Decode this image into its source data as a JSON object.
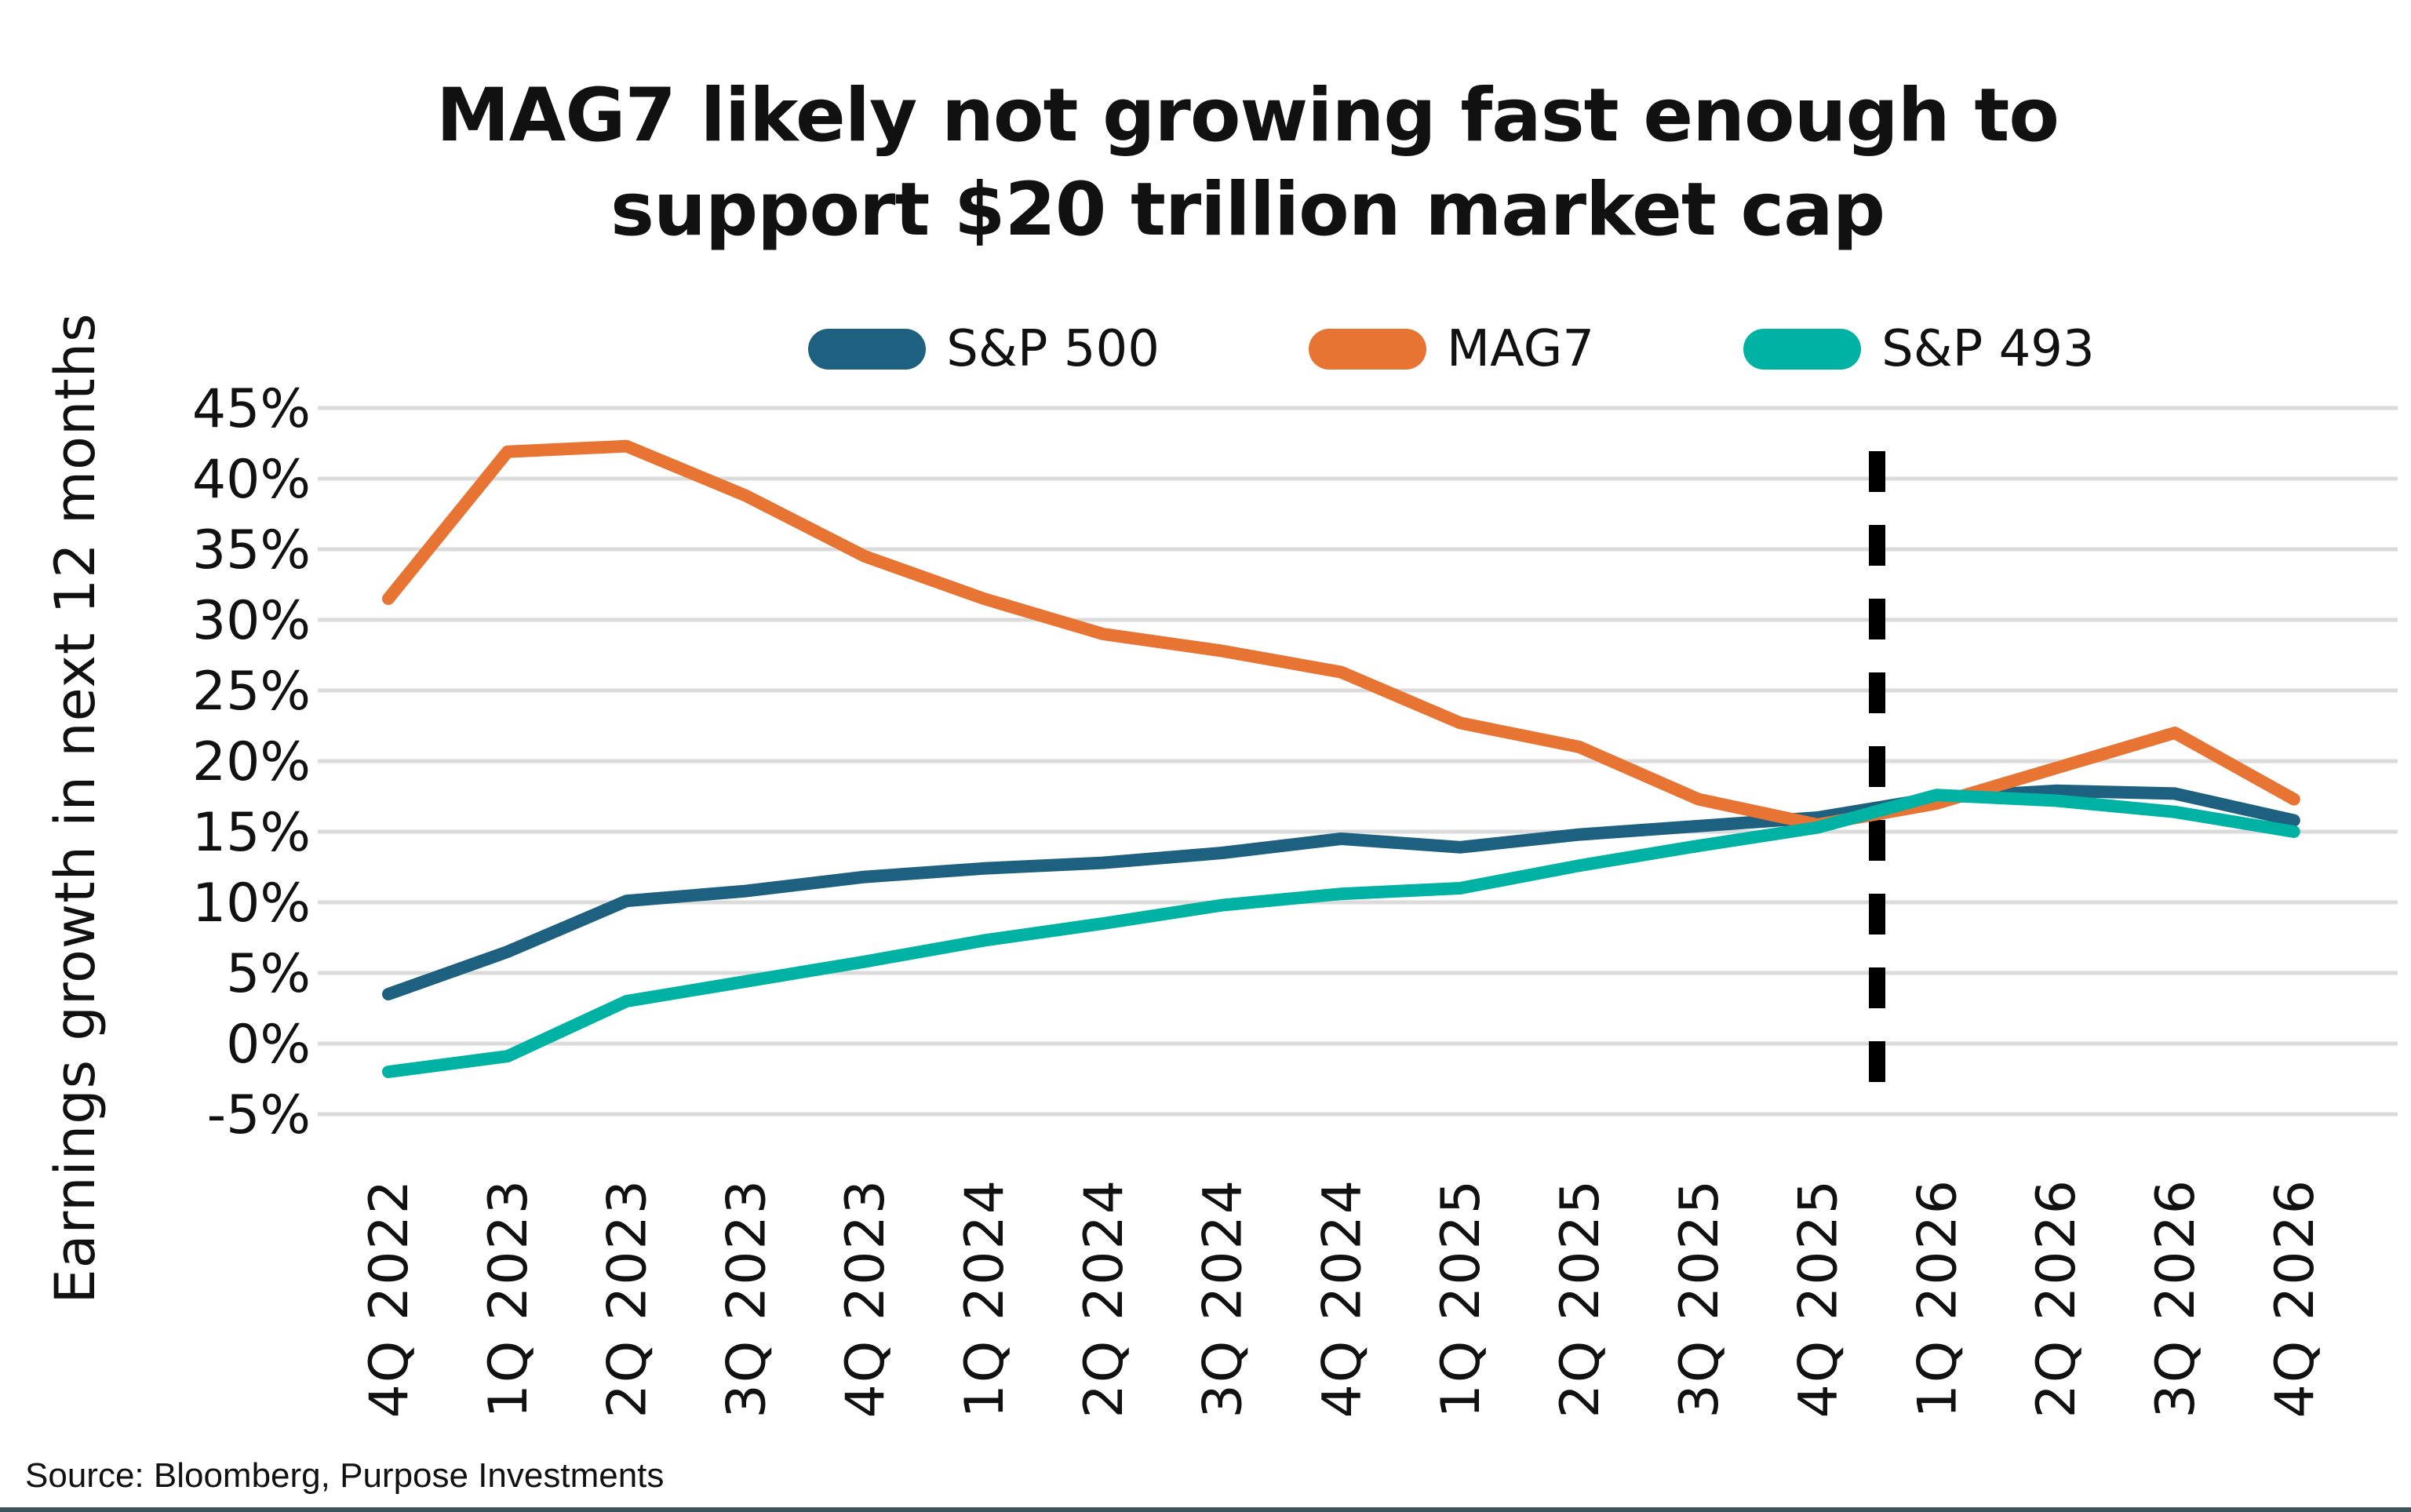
{
  "title": {
    "line1": "MAG7 likely not growing fast enough to",
    "line2": "support $20 trillion market cap"
  },
  "y_axis_title": "Earnings growth in next 12 months",
  "source": "Source: Bloomberg, Purpose Investments",
  "colors": {
    "sp500": "#1d607f",
    "mag7": "#e87434",
    "sp493": "#00b2a4",
    "gridline": "#dbdbdb",
    "divider": "#000000",
    "bottom_border": "#3a545c"
  },
  "chart_data": {
    "type": "line",
    "title": "MAG7 likely not growing fast enough to support $20 trillion market cap",
    "ylabel": "Earnings growth in next 12 months",
    "xlabel": "",
    "ylim": [
      -5,
      45
    ],
    "ytick_step": 5,
    "ytick_labels": [
      "45%",
      "40%",
      "35%",
      "30%",
      "25%",
      "20%",
      "15%",
      "10%",
      "5%",
      "0%",
      "-5%"
    ],
    "grid": "horizontal",
    "legend_position": "top",
    "categories": [
      "4Q 2022",
      "1Q 2023",
      "2Q 2023",
      "3Q 2023",
      "4Q 2023",
      "1Q 2024",
      "2Q 2024",
      "3Q 2024",
      "4Q 2024",
      "1Q 2025",
      "2Q 2025",
      "3Q 2025",
      "4Q 2025",
      "1Q 2026",
      "2Q 2026",
      "3Q 2026",
      "4Q 2026"
    ],
    "series": [
      {
        "name": "S&P 500",
        "color": "#1d607f",
        "values": [
          3.5,
          6.5,
          10.1,
          10.8,
          11.8,
          12.4,
          12.8,
          13.5,
          14.5,
          13.9,
          14.8,
          15.4,
          16.0,
          17.4,
          17.9,
          17.7,
          15.8
        ]
      },
      {
        "name": "MAG7",
        "color": "#e87434",
        "values": [
          31.5,
          41.9,
          42.3,
          38.8,
          34.5,
          31.5,
          29.0,
          27.8,
          26.3,
          22.7,
          21.0,
          17.3,
          15.5,
          17.0,
          19.5,
          22.0,
          17.3
        ]
      },
      {
        "name": "S&P 493",
        "color": "#00b2a4",
        "values": [
          -2.0,
          -0.9,
          3.0,
          4.4,
          5.8,
          7.3,
          8.5,
          9.8,
          10.6,
          11.0,
          12.6,
          14.0,
          15.3,
          17.6,
          17.2,
          16.4,
          15.0
        ]
      }
    ],
    "forecast_divider": {
      "between": [
        "4Q 2025",
        "1Q 2026"
      ],
      "style": "dashed",
      "color": "#000000"
    }
  }
}
